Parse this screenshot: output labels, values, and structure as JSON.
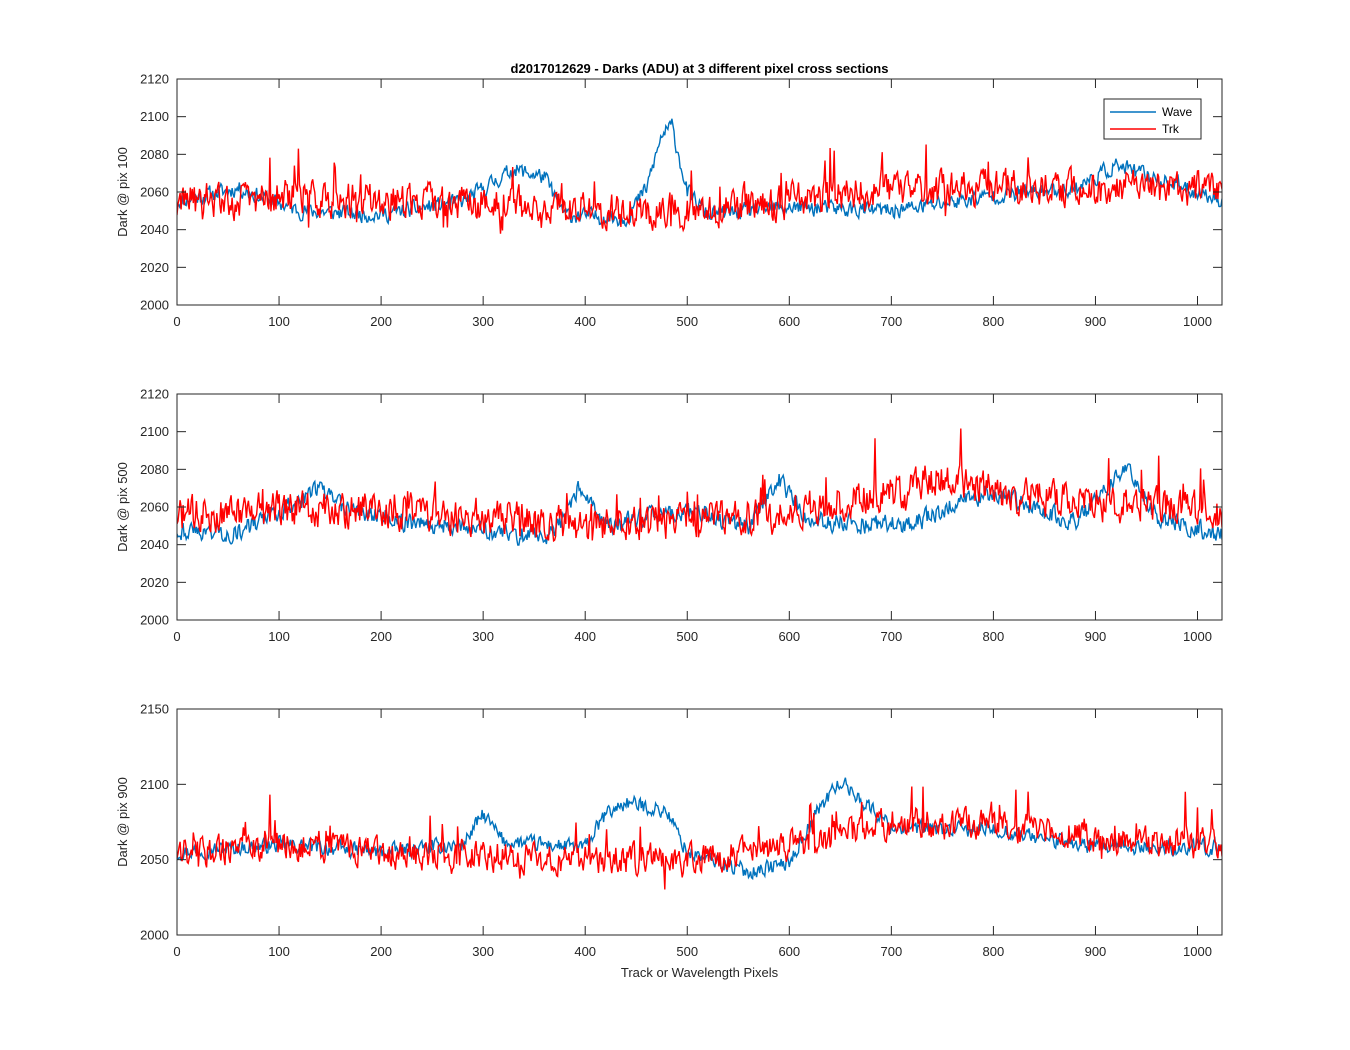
{
  "figure": {
    "title": "d2017012629 - Darks (ADU) at 3 different pixel cross sections",
    "xlabel": "Track or Wavelength Pixels"
  },
  "legend": {
    "entries": [
      {
        "label": "Wave",
        "color": "#0072BD"
      },
      {
        "label": "Trk",
        "color": "#FF0000"
      }
    ],
    "placement": "top-right of first subplot"
  },
  "chart_data": [
    {
      "type": "line",
      "title": "d2017012629 - Darks (ADU) at 3 different pixel cross sections",
      "xlabel": "",
      "ylabel": "Dark @ pix 100",
      "xlim": [
        0,
        1024
      ],
      "ylim": [
        2000,
        2120
      ],
      "xticks": [
        0,
        100,
        200,
        300,
        400,
        500,
        600,
        700,
        800,
        900,
        1000
      ],
      "yticks": [
        2000,
        2020,
        2040,
        2060,
        2080,
        2100,
        2120
      ],
      "grid": false,
      "series": [
        {
          "name": "Wave",
          "color": "#0072BD",
          "noise_amp": 6,
          "seed": 11,
          "base": [
            [
              0,
              2055
            ],
            [
              60,
              2062
            ],
            [
              120,
              2050
            ],
            [
              200,
              2048
            ],
            [
              280,
              2055
            ],
            [
              330,
              2072
            ],
            [
              360,
              2068
            ],
            [
              380,
              2048
            ],
            [
              440,
              2046
            ],
            [
              460,
              2062
            ],
            [
              475,
              2090
            ],
            [
              485,
              2095
            ],
            [
              500,
              2060
            ],
            [
              520,
              2048
            ],
            [
              600,
              2052
            ],
            [
              700,
              2050
            ],
            [
              800,
              2058
            ],
            [
              880,
              2062
            ],
            [
              920,
              2074
            ],
            [
              1000,
              2060
            ],
            [
              1024,
              2056
            ]
          ]
        },
        {
          "name": "Trk",
          "color": "#FF0000",
          "noise_amp": 13,
          "seed": 29,
          "base": [
            [
              0,
              2052
            ],
            [
              100,
              2058
            ],
            [
              200,
              2055
            ],
            [
              300,
              2055
            ],
            [
              400,
              2050
            ],
            [
              500,
              2050
            ],
            [
              600,
              2055
            ],
            [
              700,
              2060
            ],
            [
              800,
              2062
            ],
            [
              900,
              2062
            ],
            [
              1024,
              2062
            ]
          ]
        }
      ]
    },
    {
      "type": "line",
      "title": "",
      "xlabel": "",
      "ylabel": "Dark @ pix 500",
      "xlim": [
        0,
        1024
      ],
      "ylim": [
        2000,
        2120
      ],
      "xticks": [
        0,
        100,
        200,
        300,
        400,
        500,
        600,
        700,
        800,
        900,
        1000
      ],
      "yticks": [
        2000,
        2020,
        2040,
        2060,
        2080,
        2100,
        2120
      ],
      "grid": false,
      "series": [
        {
          "name": "Wave",
          "color": "#0072BD",
          "noise_amp": 7,
          "seed": 43,
          "base": [
            [
              0,
              2048
            ],
            [
              60,
              2046
            ],
            [
              100,
              2058
            ],
            [
              140,
              2070
            ],
            [
              160,
              2060
            ],
            [
              220,
              2052
            ],
            [
              280,
              2050
            ],
            [
              330,
              2045
            ],
            [
              370,
              2045
            ],
            [
              395,
              2072
            ],
            [
              420,
              2050
            ],
            [
              500,
              2058
            ],
            [
              560,
              2050
            ],
            [
              590,
              2075
            ],
            [
              620,
              2052
            ],
            [
              720,
              2050
            ],
            [
              760,
              2062
            ],
            [
              800,
              2068
            ],
            [
              880,
              2052
            ],
            [
              930,
              2080
            ],
            [
              960,
              2055
            ],
            [
              1024,
              2045
            ]
          ]
        },
        {
          "name": "Trk",
          "color": "#FF0000",
          "noise_amp": 13,
          "seed": 71,
          "base": [
            [
              0,
              2055
            ],
            [
              100,
              2060
            ],
            [
              200,
              2058
            ],
            [
              300,
              2055
            ],
            [
              400,
              2050
            ],
            [
              500,
              2052
            ],
            [
              600,
              2058
            ],
            [
              700,
              2068
            ],
            [
              750,
              2075
            ],
            [
              800,
              2068
            ],
            [
              900,
              2062
            ],
            [
              1024,
              2058
            ]
          ]
        }
      ]
    },
    {
      "type": "line",
      "title": "",
      "xlabel": "Track or Wavelength Pixels",
      "ylabel": "Dark @ pix 900",
      "xlim": [
        0,
        1024
      ],
      "ylim": [
        2000,
        2150
      ],
      "xticks": [
        0,
        100,
        200,
        300,
        400,
        500,
        600,
        700,
        800,
        900,
        1000
      ],
      "yticks": [
        2000,
        2050,
        2100,
        2150
      ],
      "grid": false,
      "series": [
        {
          "name": "Wave",
          "color": "#0072BD",
          "noise_amp": 7,
          "seed": 97,
          "base": [
            [
              0,
              2055
            ],
            [
              100,
              2060
            ],
            [
              200,
              2055
            ],
            [
              280,
              2060
            ],
            [
              300,
              2080
            ],
            [
              320,
              2062
            ],
            [
              400,
              2058
            ],
            [
              420,
              2080
            ],
            [
              440,
              2088
            ],
            [
              480,
              2082
            ],
            [
              500,
              2055
            ],
            [
              560,
              2042
            ],
            [
              600,
              2048
            ],
            [
              630,
              2085
            ],
            [
              650,
              2102
            ],
            [
              670,
              2090
            ],
            [
              700,
              2072
            ],
            [
              730,
              2070
            ],
            [
              800,
              2070
            ],
            [
              900,
              2058
            ],
            [
              1024,
              2058
            ]
          ]
        },
        {
          "name": "Trk",
          "color": "#FF0000",
          "noise_amp": 14,
          "seed": 131,
          "base": [
            [
              0,
              2055
            ],
            [
              100,
              2060
            ],
            [
              200,
              2055
            ],
            [
              300,
              2052
            ],
            [
              400,
              2050
            ],
            [
              500,
              2050
            ],
            [
              600,
              2058
            ],
            [
              700,
              2075
            ],
            [
              800,
              2072
            ],
            [
              900,
              2065
            ],
            [
              1024,
              2060
            ]
          ]
        }
      ]
    }
  ]
}
